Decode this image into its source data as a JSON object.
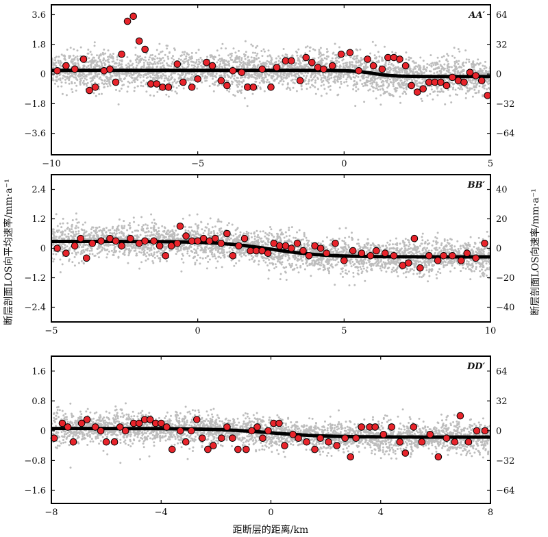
{
  "figure": {
    "xlabel": "距断层的距离/km",
    "ylabel_left": "断层剖面LOS向平均速率/mm·a⁻¹",
    "ylabel_right": "断层剖面LOS向速率/mm·a⁻¹"
  },
  "chart_data": [
    {
      "type": "scatter",
      "title": "AA′",
      "xlim": [
        -10,
        5
      ],
      "xticks": [
        -10,
        -5,
        0,
        5
      ],
      "xticklabels": [
        "−10",
        "−5",
        "0",
        "5"
      ],
      "ylim_left": [
        -4.9,
        4.2
      ],
      "yticks_left": [
        -3.6,
        -1.8,
        0,
        1.8,
        3.6
      ],
      "yticklabels_left": [
        "−3.6",
        "−1.8",
        "0",
        "1.8",
        "3.6"
      ],
      "yticks_right": [
        -64,
        -32,
        0,
        32,
        64
      ],
      "yticklabels_right": [
        "−64",
        "−32",
        "0",
        "32",
        "64"
      ],
      "right_scale": 17.78,
      "fit_line": {
        "left": 0.22,
        "right": -0.15,
        "center": 1.0,
        "width": 0.35
      },
      "scatter": {
        "count": 3200,
        "spread": 0.9,
        "color": "#bdbdbd"
      },
      "mean_points": [
        [
          -9.8,
          0.2
        ],
        [
          -9.5,
          0.5
        ],
        [
          -9.2,
          0.3
        ],
        [
          -8.9,
          0.9
        ],
        [
          -8.7,
          -1.0
        ],
        [
          -8.5,
          -0.8
        ],
        [
          -8.2,
          0.2
        ],
        [
          -8.0,
          0.3
        ],
        [
          -7.8,
          -0.5
        ],
        [
          -7.6,
          1.2
        ],
        [
          -7.4,
          3.2
        ],
        [
          -7.2,
          3.5
        ],
        [
          -7.0,
          2.0
        ],
        [
          -6.8,
          1.5
        ],
        [
          -6.6,
          -0.6
        ],
        [
          -6.4,
          -0.6
        ],
        [
          -6.2,
          -0.8
        ],
        [
          -6.0,
          -0.8
        ],
        [
          -5.7,
          0.6
        ],
        [
          -5.5,
          -0.5
        ],
        [
          -5.2,
          -0.8
        ],
        [
          -5.0,
          -0.3
        ],
        [
          -4.7,
          0.7
        ],
        [
          -4.5,
          0.5
        ],
        [
          -4.2,
          -0.4
        ],
        [
          -4.0,
          -0.7
        ],
        [
          -3.8,
          0.2
        ],
        [
          -3.5,
          0.1
        ],
        [
          -3.3,
          -0.8
        ],
        [
          -3.1,
          -0.8
        ],
        [
          -2.8,
          0.3
        ],
        [
          -2.5,
          -0.8
        ],
        [
          -2.3,
          0.4
        ],
        [
          -2.0,
          0.8
        ],
        [
          -1.8,
          0.8
        ],
        [
          -1.5,
          -0.4
        ],
        [
          -1.3,
          1.0
        ],
        [
          -1.1,
          0.7
        ],
        [
          -0.9,
          0.4
        ],
        [
          -0.7,
          0.3
        ],
        [
          -0.4,
          0.5
        ],
        [
          -0.1,
          1.2
        ],
        [
          0.2,
          1.3
        ],
        [
          0.5,
          0.2
        ],
        [
          0.8,
          0.9
        ],
        [
          1.0,
          0.5
        ],
        [
          1.3,
          0.3
        ],
        [
          1.5,
          1.0
        ],
        [
          1.7,
          1.0
        ],
        [
          1.9,
          0.9
        ],
        [
          2.1,
          0.5
        ],
        [
          2.3,
          -0.7
        ],
        [
          2.5,
          -1.1
        ],
        [
          2.7,
          -0.9
        ],
        [
          2.9,
          -0.5
        ],
        [
          3.1,
          -0.5
        ],
        [
          3.3,
          -0.5
        ],
        [
          3.5,
          -0.7
        ],
        [
          3.7,
          -0.2
        ],
        [
          3.9,
          -0.4
        ],
        [
          4.1,
          -0.5
        ],
        [
          4.3,
          0.1
        ],
        [
          4.5,
          -0.1
        ],
        [
          4.7,
          -0.4
        ],
        [
          4.9,
          -1.3
        ]
      ]
    },
    {
      "type": "scatter",
      "title": "BB′",
      "xlim": [
        -5,
        10
      ],
      "xticks": [
        -5,
        0,
        5,
        10
      ],
      "xticklabels": [
        "−5",
        "0",
        "5",
        "10"
      ],
      "ylim_left": [
        -3.0,
        3.0
      ],
      "yticks_left": [
        -2.4,
        -1.2,
        0,
        1.2,
        2.4
      ],
      "yticklabels_left": [
        "−2.4",
        "−1.2",
        "0",
        "1.2",
        "2.4"
      ],
      "yticks_right": [
        -40,
        -20,
        0,
        20,
        40
      ],
      "yticklabels_right": [
        "−40",
        "−20",
        "0",
        "20",
        "40"
      ],
      "right_scale": 16.67,
      "fit_line": {
        "left": 0.28,
        "right": -0.35,
        "center": 2.5,
        "width": 0.9
      },
      "scatter": {
        "count": 3200,
        "spread": 0.55,
        "color": "#bdbdbd"
      },
      "mean_points": [
        [
          -4.8,
          0.0
        ],
        [
          -4.5,
          -0.2
        ],
        [
          -4.2,
          0.1
        ],
        [
          -4.0,
          0.4
        ],
        [
          -3.8,
          -0.4
        ],
        [
          -3.6,
          0.2
        ],
        [
          -3.3,
          0.3
        ],
        [
          -3.0,
          0.4
        ],
        [
          -2.8,
          0.3
        ],
        [
          -2.6,
          0.1
        ],
        [
          -2.3,
          0.4
        ],
        [
          -2.0,
          0.2
        ],
        [
          -1.8,
          0.3
        ],
        [
          -1.5,
          0.3
        ],
        [
          -1.3,
          0.1
        ],
        [
          -1.1,
          -0.3
        ],
        [
          -0.9,
          0.1
        ],
        [
          -0.7,
          0.2
        ],
        [
          -0.6,
          0.9
        ],
        [
          -0.4,
          0.5
        ],
        [
          -0.2,
          0.3
        ],
        [
          0.0,
          0.3
        ],
        [
          0.2,
          0.4
        ],
        [
          0.4,
          0.3
        ],
        [
          0.6,
          0.4
        ],
        [
          0.8,
          0.2
        ],
        [
          1.0,
          0.6
        ],
        [
          1.2,
          -0.3
        ],
        [
          1.4,
          0.1
        ],
        [
          1.6,
          0.4
        ],
        [
          1.8,
          -0.1
        ],
        [
          2.0,
          -0.1
        ],
        [
          2.2,
          -0.1
        ],
        [
          2.4,
          -0.2
        ],
        [
          2.6,
          0.2
        ],
        [
          2.8,
          0.1
        ],
        [
          3.0,
          0.1
        ],
        [
          3.2,
          0.0
        ],
        [
          3.4,
          0.2
        ],
        [
          3.6,
          -0.1
        ],
        [
          3.8,
          -0.3
        ],
        [
          4.0,
          0.1
        ],
        [
          4.2,
          0.0
        ],
        [
          4.4,
          -0.2
        ],
        [
          4.7,
          0.2
        ],
        [
          5.0,
          -0.5
        ],
        [
          5.3,
          -0.1
        ],
        [
          5.6,
          -0.2
        ],
        [
          5.9,
          -0.3
        ],
        [
          6.1,
          -0.1
        ],
        [
          6.4,
          -0.2
        ],
        [
          6.7,
          -0.3
        ],
        [
          7.0,
          -0.7
        ],
        [
          7.2,
          -0.6
        ],
        [
          7.4,
          0.4
        ],
        [
          7.6,
          -0.8
        ],
        [
          7.9,
          -0.3
        ],
        [
          8.2,
          -0.5
        ],
        [
          8.4,
          -0.3
        ],
        [
          8.7,
          -0.3
        ],
        [
          9.0,
          -0.5
        ],
        [
          9.2,
          -0.2
        ],
        [
          9.5,
          -0.4
        ],
        [
          9.8,
          0.2
        ]
      ]
    },
    {
      "type": "scatter",
      "title": "DD′",
      "xlim": [
        -8,
        8
      ],
      "xticks": [
        -8,
        -4,
        0,
        4,
        8
      ],
      "xticklabels": [
        "−8",
        "−4",
        "0",
        "4",
        "8"
      ],
      "ylim_left": [
        -1.95,
        2.0
      ],
      "yticks_left": [
        -1.6,
        -0.8,
        0,
        0.8,
        1.6
      ],
      "yticklabels_left": [
        "−1.6",
        "−0.8",
        "0",
        "0.8",
        "1.6"
      ],
      "yticks_right": [
        -64,
        -32,
        0,
        32,
        64
      ],
      "yticklabels_right": [
        "−64",
        "−32",
        "0",
        "32",
        "64"
      ],
      "right_scale": 40.0,
      "fit_line": {
        "left": 0.06,
        "right": -0.17,
        "center": 0.0,
        "width": 1.0
      },
      "scatter": {
        "count": 3200,
        "spread": 0.32,
        "color": "#bdbdbd"
      },
      "mean_points": [
        [
          -7.9,
          -0.2
        ],
        [
          -7.6,
          0.2
        ],
        [
          -7.4,
          0.1
        ],
        [
          -7.2,
          -0.3
        ],
        [
          -6.9,
          0.2
        ],
        [
          -6.7,
          0.3
        ],
        [
          -6.4,
          0.1
        ],
        [
          -6.2,
          0.0
        ],
        [
          -6.0,
          -0.3
        ],
        [
          -5.7,
          -0.3
        ],
        [
          -5.5,
          0.1
        ],
        [
          -5.3,
          0.0
        ],
        [
          -5.0,
          0.2
        ],
        [
          -4.8,
          0.2
        ],
        [
          -4.6,
          0.3
        ],
        [
          -4.4,
          0.3
        ],
        [
          -4.2,
          0.2
        ],
        [
          -4.0,
          0.2
        ],
        [
          -3.8,
          0.1
        ],
        [
          -3.6,
          -0.5
        ],
        [
          -3.3,
          0.0
        ],
        [
          -3.1,
          -0.3
        ],
        [
          -2.9,
          0.0
        ],
        [
          -2.7,
          0.3
        ],
        [
          -2.5,
          -0.2
        ],
        [
          -2.3,
          -0.5
        ],
        [
          -2.1,
          -0.4
        ],
        [
          -1.8,
          -0.2
        ],
        [
          -1.6,
          0.1
        ],
        [
          -1.4,
          -0.2
        ],
        [
          -1.2,
          -0.5
        ],
        [
          -0.9,
          -0.5
        ],
        [
          -0.7,
          0.0
        ],
        [
          -0.5,
          0.1
        ],
        [
          -0.3,
          -0.2
        ],
        [
          -0.1,
          0.0
        ],
        [
          0.1,
          0.2
        ],
        [
          0.3,
          0.2
        ],
        [
          0.5,
          -0.4
        ],
        [
          0.8,
          -0.1
        ],
        [
          1.0,
          -0.2
        ],
        [
          1.3,
          -0.3
        ],
        [
          1.6,
          -0.5
        ],
        [
          1.8,
          -0.2
        ],
        [
          2.1,
          -0.3
        ],
        [
          2.4,
          -0.4
        ],
        [
          2.7,
          -0.2
        ],
        [
          2.9,
          -0.7
        ],
        [
          3.1,
          -0.2
        ],
        [
          3.3,
          0.1
        ],
        [
          3.6,
          0.1
        ],
        [
          3.8,
          0.1
        ],
        [
          4.1,
          -0.1
        ],
        [
          4.4,
          0.1
        ],
        [
          4.7,
          -0.3
        ],
        [
          4.9,
          -0.6
        ],
        [
          5.2,
          0.1
        ],
        [
          5.5,
          -0.3
        ],
        [
          5.8,
          -0.1
        ],
        [
          6.1,
          -0.7
        ],
        [
          6.4,
          -0.2
        ],
        [
          6.7,
          -0.3
        ],
        [
          6.9,
          0.4
        ],
        [
          7.2,
          -0.3
        ],
        [
          7.5,
          0.0
        ],
        [
          7.8,
          0.0
        ]
      ]
    }
  ]
}
